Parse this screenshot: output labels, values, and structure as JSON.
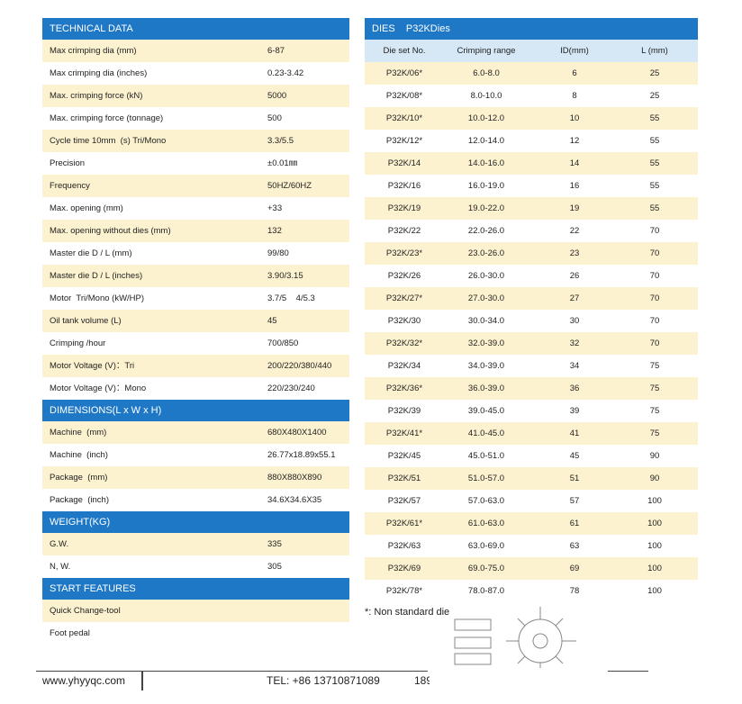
{
  "left": {
    "sections": [
      {
        "title": "TECHNICAL DATA",
        "rows": [
          [
            "Max crimping dia (mm)",
            "6-87"
          ],
          [
            "Max crimping dia (inches)",
            "0.23-3.42"
          ],
          [
            "Max. crimping force (kN)",
            "5000"
          ],
          [
            "Max. crimping force (tonnage)",
            "500"
          ],
          [
            "Cycle time 10mm  (s) Tri/Mono",
            "3.3/5.5"
          ],
          [
            "Precision",
            "±0.01㎜"
          ],
          [
            "Frequency",
            "50HZ/60HZ"
          ],
          [
            "Max. opening (mm)",
            "+33"
          ],
          [
            "Max. opening without dies (mm)",
            "132"
          ],
          [
            "Master die D / L (mm)",
            "99/80"
          ],
          [
            "Master die D / L (inches)",
            "3.90/3.15"
          ],
          [
            "Motor  Tri/Mono (kW/HP)",
            "3.7/5    4/5.3"
          ],
          [
            "Oil tank volume (L)",
            "45"
          ],
          [
            "Crimping /hour",
            "700/850"
          ],
          [
            "Motor Voltage (V)：Tri",
            "200/220/380/440"
          ],
          [
            "Motor Voltage (V)：Mono",
            "220/230/240"
          ]
        ]
      },
      {
        "title": "DIMENSIONS(L x W x H)",
        "rows": [
          [
            "Machine  (mm)",
            "680X480X1400"
          ],
          [
            "Machine  (inch)",
            "26.77x18.89x55.1"
          ],
          [
            "Package  (mm)",
            "880X880X890"
          ],
          [
            "Package  (inch)",
            "34.6X34.6X35"
          ]
        ]
      },
      {
        "title": "WEIGHT(KG)",
        "rows": [
          [
            "G.W.",
            "335"
          ],
          [
            "N, W.",
            "305"
          ]
        ]
      },
      {
        "title": "START FEATURES",
        "rows": [
          [
            "Quick Change-tool"
          ],
          [
            "Foot pedal"
          ]
        ]
      }
    ]
  },
  "dies": {
    "title": "DIES    P32KDies",
    "columns": [
      "Die set No.",
      "Crimping range",
      "ID(mm)",
      "L (mm)"
    ],
    "rows": [
      [
        "P32K/06*",
        "6.0-8.0",
        "6",
        "25"
      ],
      [
        "P32K/08*",
        "8.0-10.0",
        "8",
        "25"
      ],
      [
        "P32K/10*",
        "10.0-12.0",
        "10",
        "55"
      ],
      [
        "P32K/12*",
        "12.0-14.0",
        "12",
        "55"
      ],
      [
        "P32K/14",
        "14.0-16.0",
        "14",
        "55"
      ],
      [
        "P32K/16",
        "16.0-19.0",
        "16",
        "55"
      ],
      [
        "P32K/19",
        "19.0-22.0",
        "19",
        "55"
      ],
      [
        "P32K/22",
        "22.0-26.0",
        "22",
        "70"
      ],
      [
        "P32K/23*",
        "23.0-26.0",
        "23",
        "70"
      ],
      [
        "P32K/26",
        "26.0-30.0",
        "26",
        "70"
      ],
      [
        "P32K/27*",
        "27.0-30.0",
        "27",
        "70"
      ],
      [
        "P32K/30",
        "30.0-34.0",
        "30",
        "70"
      ],
      [
        "P32K/32*",
        "32.0-39.0",
        "32",
        "70"
      ],
      [
        "P32K/34",
        "34.0-39.0",
        "34",
        "75"
      ],
      [
        "P32K/36*",
        "36.0-39.0",
        "36",
        "75"
      ],
      [
        "P32K/39",
        "39.0-45.0",
        "39",
        "75"
      ],
      [
        "P32K/41*",
        "41.0-45.0",
        "41",
        "75"
      ],
      [
        "P32K/45",
        "45.0-51.0",
        "45",
        "90"
      ],
      [
        "P32K/51",
        "51.0-57.0",
        "51",
        "90"
      ],
      [
        "P32K/57",
        "57.0-63.0",
        "57",
        "100"
      ],
      [
        "P32K/61*",
        "61.0-63.0",
        "61",
        "100"
      ],
      [
        "P32K/63",
        "63.0-69.0",
        "63",
        "100"
      ],
      [
        "P32K/69",
        "69.0-75.0",
        "69",
        "100"
      ],
      [
        "P32K/78*",
        "78.0-87.0",
        "78",
        "100"
      ]
    ],
    "note": "*: Non standard die"
  },
  "footer": {
    "website": "www.yhyyqc.com",
    "tel": "TEL: +86 13710871089",
    "extra": "189"
  }
}
